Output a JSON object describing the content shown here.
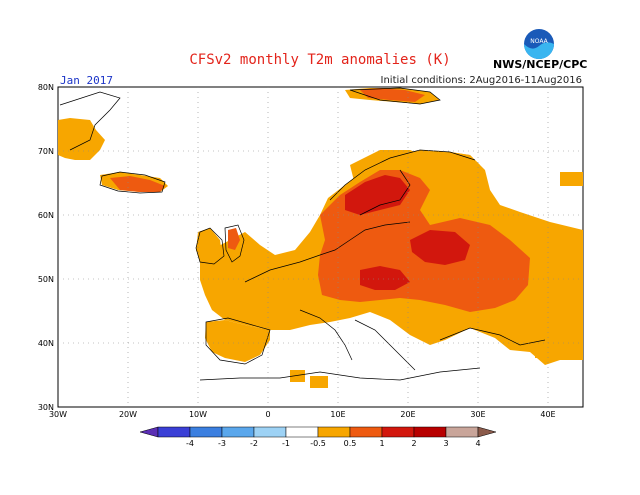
{
  "header": {
    "title": "CFSv2 monthly T2m anomalies (K)",
    "month_label": "Jan 2017",
    "initial_conditions": "Initial conditions: 2Aug2016-11Aug2016",
    "agency": "NWS/NCEP/CPC",
    "logo_text": "NOAA"
  },
  "axes": {
    "lat_ticks": [
      "80N",
      "70N",
      "60N",
      "50N",
      "40N",
      "30N"
    ],
    "lon_ticks": [
      "30W",
      "20W",
      "10W",
      "0",
      "10E",
      "20E",
      "30E",
      "40E"
    ]
  },
  "colorbar": {
    "labels": [
      "-4",
      "-3",
      "-2",
      "-1",
      "-0.5",
      "0.5",
      "1",
      "2",
      "3",
      "4"
    ],
    "colors": [
      "#5b2fb4",
      "#3a3fd6",
      "#3b7fe0",
      "#5aa7ec",
      "#9dd2f5",
      "#ffffff",
      "#f7a600",
      "#ee5a10",
      "#d2170d",
      "#b80000",
      "#c9a59a",
      "#8b5a4a"
    ]
  },
  "legend_colors": {
    "orange": "#f7a600",
    "red_orange": "#ee5a10",
    "red": "#d2170d"
  }
}
